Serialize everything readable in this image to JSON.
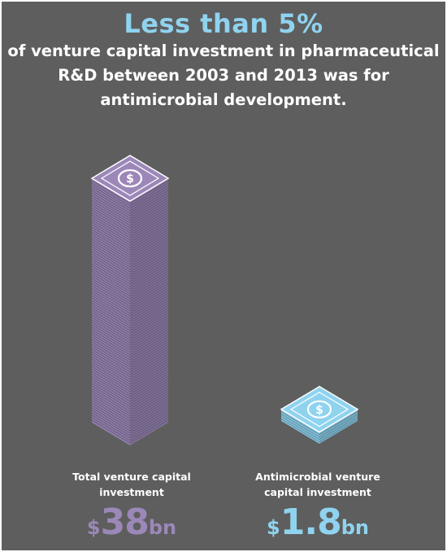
{
  "headline": "Less than 5%",
  "subtitle_lines": [
    "of venture capital investment in pharmaceutical",
    "R&D between 2003 and 2013 was for",
    "antimicrobial development."
  ],
  "colors": {
    "background": "#5e5e5e",
    "headline": "#8fd3ef",
    "total": "#9b88b8",
    "antimicrobial": "#8fd3ef"
  },
  "icons": {
    "note": "dollar-sign-icon"
  },
  "chart_data": {
    "type": "bar",
    "categories": [
      "Total venture capital investment",
      "Antimicrobial venture capital investment"
    ],
    "values": [
      38,
      1.8
    ],
    "unit": "bn",
    "currency": "$",
    "labels": [
      [
        "Total venture capital",
        "investment"
      ],
      [
        "Antimicrobial venture",
        "capital investment"
      ]
    ],
    "value_labels": [
      {
        "currency": "$",
        "number": "38",
        "unit": "bn"
      },
      {
        "currency": "$",
        "number": "1.8",
        "unit": "bn"
      }
    ]
  }
}
